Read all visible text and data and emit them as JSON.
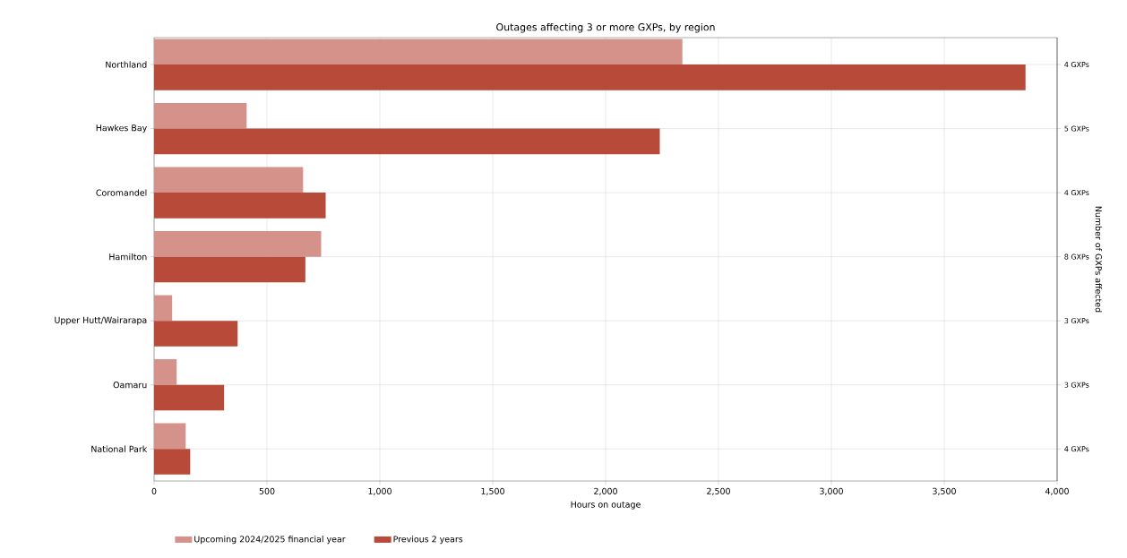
{
  "chart_data": {
    "type": "bar",
    "orientation": "horizontal",
    "title": "Outages affecting 3 or more GXPs, by region",
    "xlabel": "Hours on outage",
    "y2label": "Number of GXPs affected",
    "categories": [
      "Northland",
      "Hawkes Bay",
      "Coromandel",
      "Hamilton",
      "Upper Hutt/Wairarapa",
      "Oamaru",
      "National Park"
    ],
    "y2_categories": [
      "4 GXPs",
      "5 GXPs",
      "4 GXPs",
      "8 GXPs",
      "3 GXPs",
      "3 GXPs",
      "4 GXPs"
    ],
    "series": [
      {
        "name": "Upcoming 2024/2025 financial year",
        "color": "#d4928a",
        "values": [
          2340,
          410,
          660,
          740,
          80,
          100,
          140
        ]
      },
      {
        "name": "Previous 2 years",
        "color": "#b84a3a",
        "values": [
          3860,
          2240,
          760,
          670,
          370,
          310,
          160
        ]
      }
    ],
    "xlim": [
      0,
      4000
    ],
    "xticks": [
      0,
      500,
      {
        "value": 1000,
        "label": "1,000"
      },
      {
        "value": 1500,
        "label": "1,500"
      },
      {
        "value": 2000,
        "label": "2,000"
      },
      {
        "value": 2500,
        "label": "2,500"
      },
      {
        "value": 3000,
        "label": "3,000"
      },
      {
        "value": 3500,
        "label": "3,500"
      },
      {
        "value": 4000,
        "label": "4,000"
      }
    ],
    "grid": true,
    "legend": "bottom"
  }
}
